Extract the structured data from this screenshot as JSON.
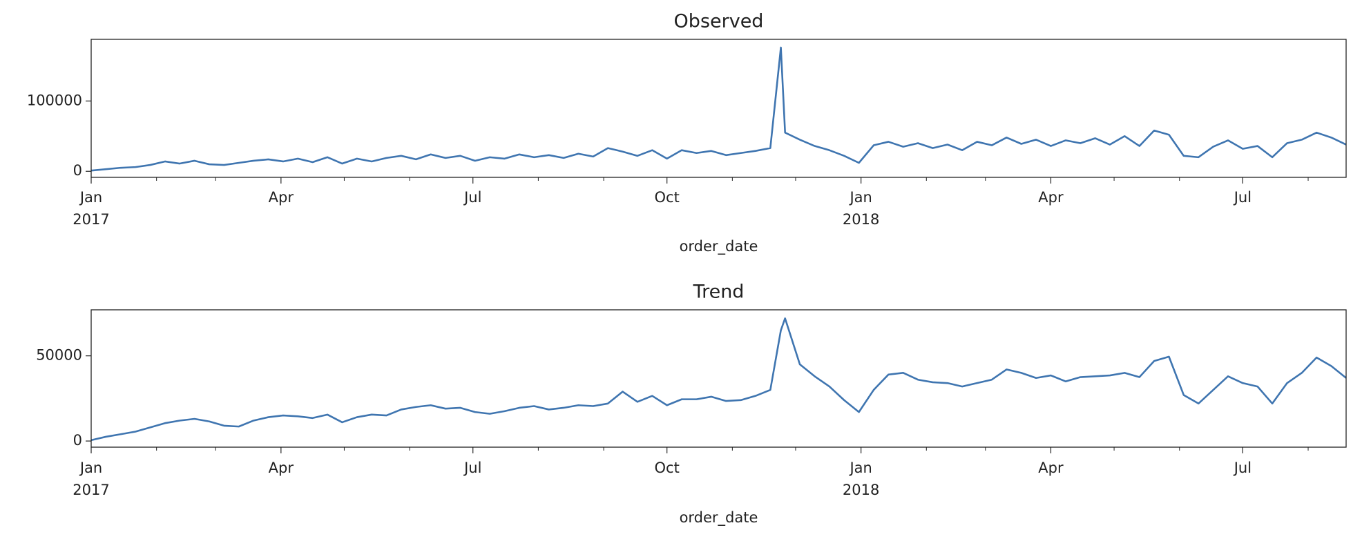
{
  "chart_data": [
    {
      "type": "line",
      "title": "Observed",
      "xlabel": "order_date",
      "color": "#3f75b0",
      "x": [
        "2017-01-01",
        "2017-01-08",
        "2017-01-15",
        "2017-01-22",
        "2017-01-29",
        "2017-02-05",
        "2017-02-12",
        "2017-02-19",
        "2017-02-26",
        "2017-03-05",
        "2017-03-12",
        "2017-03-19",
        "2017-03-26",
        "2017-04-02",
        "2017-04-09",
        "2017-04-16",
        "2017-04-23",
        "2017-04-30",
        "2017-05-07",
        "2017-05-14",
        "2017-05-21",
        "2017-05-28",
        "2017-06-04",
        "2017-06-11",
        "2017-06-18",
        "2017-06-25",
        "2017-07-02",
        "2017-07-09",
        "2017-07-16",
        "2017-07-23",
        "2017-07-30",
        "2017-08-06",
        "2017-08-13",
        "2017-08-20",
        "2017-08-27",
        "2017-09-03",
        "2017-09-10",
        "2017-09-17",
        "2017-09-24",
        "2017-10-01",
        "2017-10-08",
        "2017-10-15",
        "2017-10-22",
        "2017-10-29",
        "2017-11-05",
        "2017-11-12",
        "2017-11-19",
        "2017-11-24",
        "2017-11-26",
        "2017-12-03",
        "2017-12-10",
        "2017-12-17",
        "2017-12-24",
        "2017-12-31",
        "2018-01-07",
        "2018-01-14",
        "2018-01-21",
        "2018-01-28",
        "2018-02-04",
        "2018-02-11",
        "2018-02-18",
        "2018-02-25",
        "2018-03-04",
        "2018-03-11",
        "2018-03-18",
        "2018-03-25",
        "2018-04-01",
        "2018-04-08",
        "2018-04-15",
        "2018-04-22",
        "2018-04-29",
        "2018-05-06",
        "2018-05-13",
        "2018-05-20",
        "2018-05-27",
        "2018-06-03",
        "2018-06-10",
        "2018-06-17",
        "2018-06-24",
        "2018-07-01",
        "2018-07-08",
        "2018-07-15",
        "2018-07-22",
        "2018-07-29",
        "2018-08-05",
        "2018-08-12",
        "2018-08-19"
      ],
      "values": [
        1000,
        3000,
        5000,
        6000,
        9000,
        14000,
        11000,
        15000,
        10000,
        9000,
        12000,
        15000,
        17000,
        14000,
        18000,
        13000,
        20000,
        11000,
        18000,
        14000,
        19000,
        22000,
        17000,
        24000,
        19000,
        22000,
        15000,
        20000,
        18000,
        24000,
        20000,
        23000,
        19000,
        25000,
        21000,
        33000,
        28000,
        22000,
        30000,
        18000,
        30000,
        26000,
        29000,
        23000,
        26000,
        29000,
        33000,
        176000,
        55000,
        45000,
        36000,
        30000,
        22000,
        12000,
        37000,
        42000,
        35000,
        40000,
        33000,
        38000,
        30000,
        42000,
        37000,
        48000,
        39000,
        45000,
        36000,
        44000,
        40000,
        47000,
        38000,
        50000,
        36000,
        58000,
        52000,
        22000,
        20000,
        35000,
        44000,
        32000,
        36000,
        20000,
        40000,
        45000,
        55000,
        48000,
        38000
      ],
      "xlim": [
        "2017-01-01",
        "2018-08-19"
      ],
      "xticks": [
        {
          "value": "2017-01-01",
          "label": [
            "Jan",
            "2017"
          ]
        },
        {
          "value": "2017-04-01",
          "label": [
            "Apr"
          ]
        },
        {
          "value": "2017-07-01",
          "label": [
            "Jul"
          ]
        },
        {
          "value": "2017-10-01",
          "label": [
            "Oct"
          ]
        },
        {
          "value": "2018-01-01",
          "label": [
            "Jan",
            "2018"
          ]
        },
        {
          "value": "2018-04-01",
          "label": [
            "Apr"
          ]
        },
        {
          "value": "2018-07-01",
          "label": [
            "Jul"
          ]
        }
      ],
      "xminorticks": [
        "2017-02-01",
        "2017-03-01",
        "2017-05-01",
        "2017-06-01",
        "2017-08-01",
        "2017-09-01",
        "2017-11-01",
        "2017-12-01",
        "2018-02-01",
        "2018-03-01",
        "2018-05-01",
        "2018-06-01",
        "2018-08-01"
      ],
      "ylim": [
        -8600,
        187700
      ],
      "yticks": [
        0,
        100000
      ]
    },
    {
      "type": "line",
      "title": "Trend",
      "xlabel": "order_date",
      "color": "#3f75b0",
      "x": [
        "2017-01-01",
        "2017-01-08",
        "2017-01-15",
        "2017-01-22",
        "2017-01-29",
        "2017-02-05",
        "2017-02-12",
        "2017-02-19",
        "2017-02-26",
        "2017-03-05",
        "2017-03-12",
        "2017-03-19",
        "2017-03-26",
        "2017-04-02",
        "2017-04-09",
        "2017-04-16",
        "2017-04-23",
        "2017-04-30",
        "2017-05-07",
        "2017-05-14",
        "2017-05-21",
        "2017-05-28",
        "2017-06-04",
        "2017-06-11",
        "2017-06-18",
        "2017-06-25",
        "2017-07-02",
        "2017-07-09",
        "2017-07-16",
        "2017-07-23",
        "2017-07-30",
        "2017-08-06",
        "2017-08-13",
        "2017-08-20",
        "2017-08-27",
        "2017-09-03",
        "2017-09-10",
        "2017-09-17",
        "2017-09-24",
        "2017-10-01",
        "2017-10-08",
        "2017-10-15",
        "2017-10-22",
        "2017-10-29",
        "2017-11-05",
        "2017-11-12",
        "2017-11-19",
        "2017-11-24",
        "2017-11-26",
        "2017-12-03",
        "2017-12-10",
        "2017-12-17",
        "2017-12-24",
        "2017-12-31",
        "2018-01-07",
        "2018-01-14",
        "2018-01-21",
        "2018-01-28",
        "2018-02-04",
        "2018-02-11",
        "2018-02-18",
        "2018-02-25",
        "2018-03-04",
        "2018-03-11",
        "2018-03-18",
        "2018-03-25",
        "2018-04-01",
        "2018-04-08",
        "2018-04-15",
        "2018-04-22",
        "2018-04-29",
        "2018-05-06",
        "2018-05-13",
        "2018-05-20",
        "2018-05-27",
        "2018-06-03",
        "2018-06-10",
        "2018-06-17",
        "2018-06-24",
        "2018-07-01",
        "2018-07-08",
        "2018-07-15",
        "2018-07-22",
        "2018-07-29",
        "2018-08-05",
        "2018-08-12",
        "2018-08-19"
      ],
      "values": [
        500,
        2500,
        4000,
        5500,
        8000,
        10500,
        12000,
        13000,
        11500,
        9000,
        8500,
        12000,
        14000,
        15000,
        14500,
        13500,
        15500,
        11000,
        14000,
        15500,
        15000,
        18500,
        20000,
        21000,
        19000,
        19500,
        17000,
        16000,
        17500,
        19500,
        20500,
        18500,
        19500,
        21000,
        20500,
        22000,
        29000,
        23000,
        26500,
        21000,
        24500,
        24500,
        26000,
        23500,
        24000,
        26500,
        30000,
        65000,
        72000,
        45000,
        38000,
        32000,
        24000,
        17000,
        30000,
        39000,
        40000,
        36000,
        34500,
        34000,
        32000,
        34000,
        36000,
        42000,
        40000,
        37000,
        38500,
        35000,
        37500,
        38000,
        38500,
        40000,
        37500,
        47000,
        49500,
        27000,
        22000,
        30000,
        38000,
        34000,
        32000,
        22000,
        34000,
        40000,
        49000,
        44000,
        37000
      ],
      "xlim": [
        "2017-01-01",
        "2018-08-19"
      ],
      "xticks": [
        {
          "value": "2017-01-01",
          "label": [
            "Jan",
            "2017"
          ]
        },
        {
          "value": "2017-04-01",
          "label": [
            "Apr"
          ]
        },
        {
          "value": "2017-07-01",
          "label": [
            "Jul"
          ]
        },
        {
          "value": "2017-10-01",
          "label": [
            "Oct"
          ]
        },
        {
          "value": "2018-01-01",
          "label": [
            "Jan",
            "2018"
          ]
        },
        {
          "value": "2018-04-01",
          "label": [
            "Apr"
          ]
        },
        {
          "value": "2018-07-01",
          "label": [
            "Jul"
          ]
        }
      ],
      "xminorticks": [
        "2017-02-01",
        "2017-03-01",
        "2017-05-01",
        "2017-06-01",
        "2017-08-01",
        "2017-09-01",
        "2017-11-01",
        "2017-12-01",
        "2018-02-01",
        "2018-03-01",
        "2018-05-01",
        "2018-06-01",
        "2018-08-01"
      ],
      "ylim": [
        -3600,
        77000
      ],
      "yticks": [
        0,
        50000
      ]
    }
  ]
}
